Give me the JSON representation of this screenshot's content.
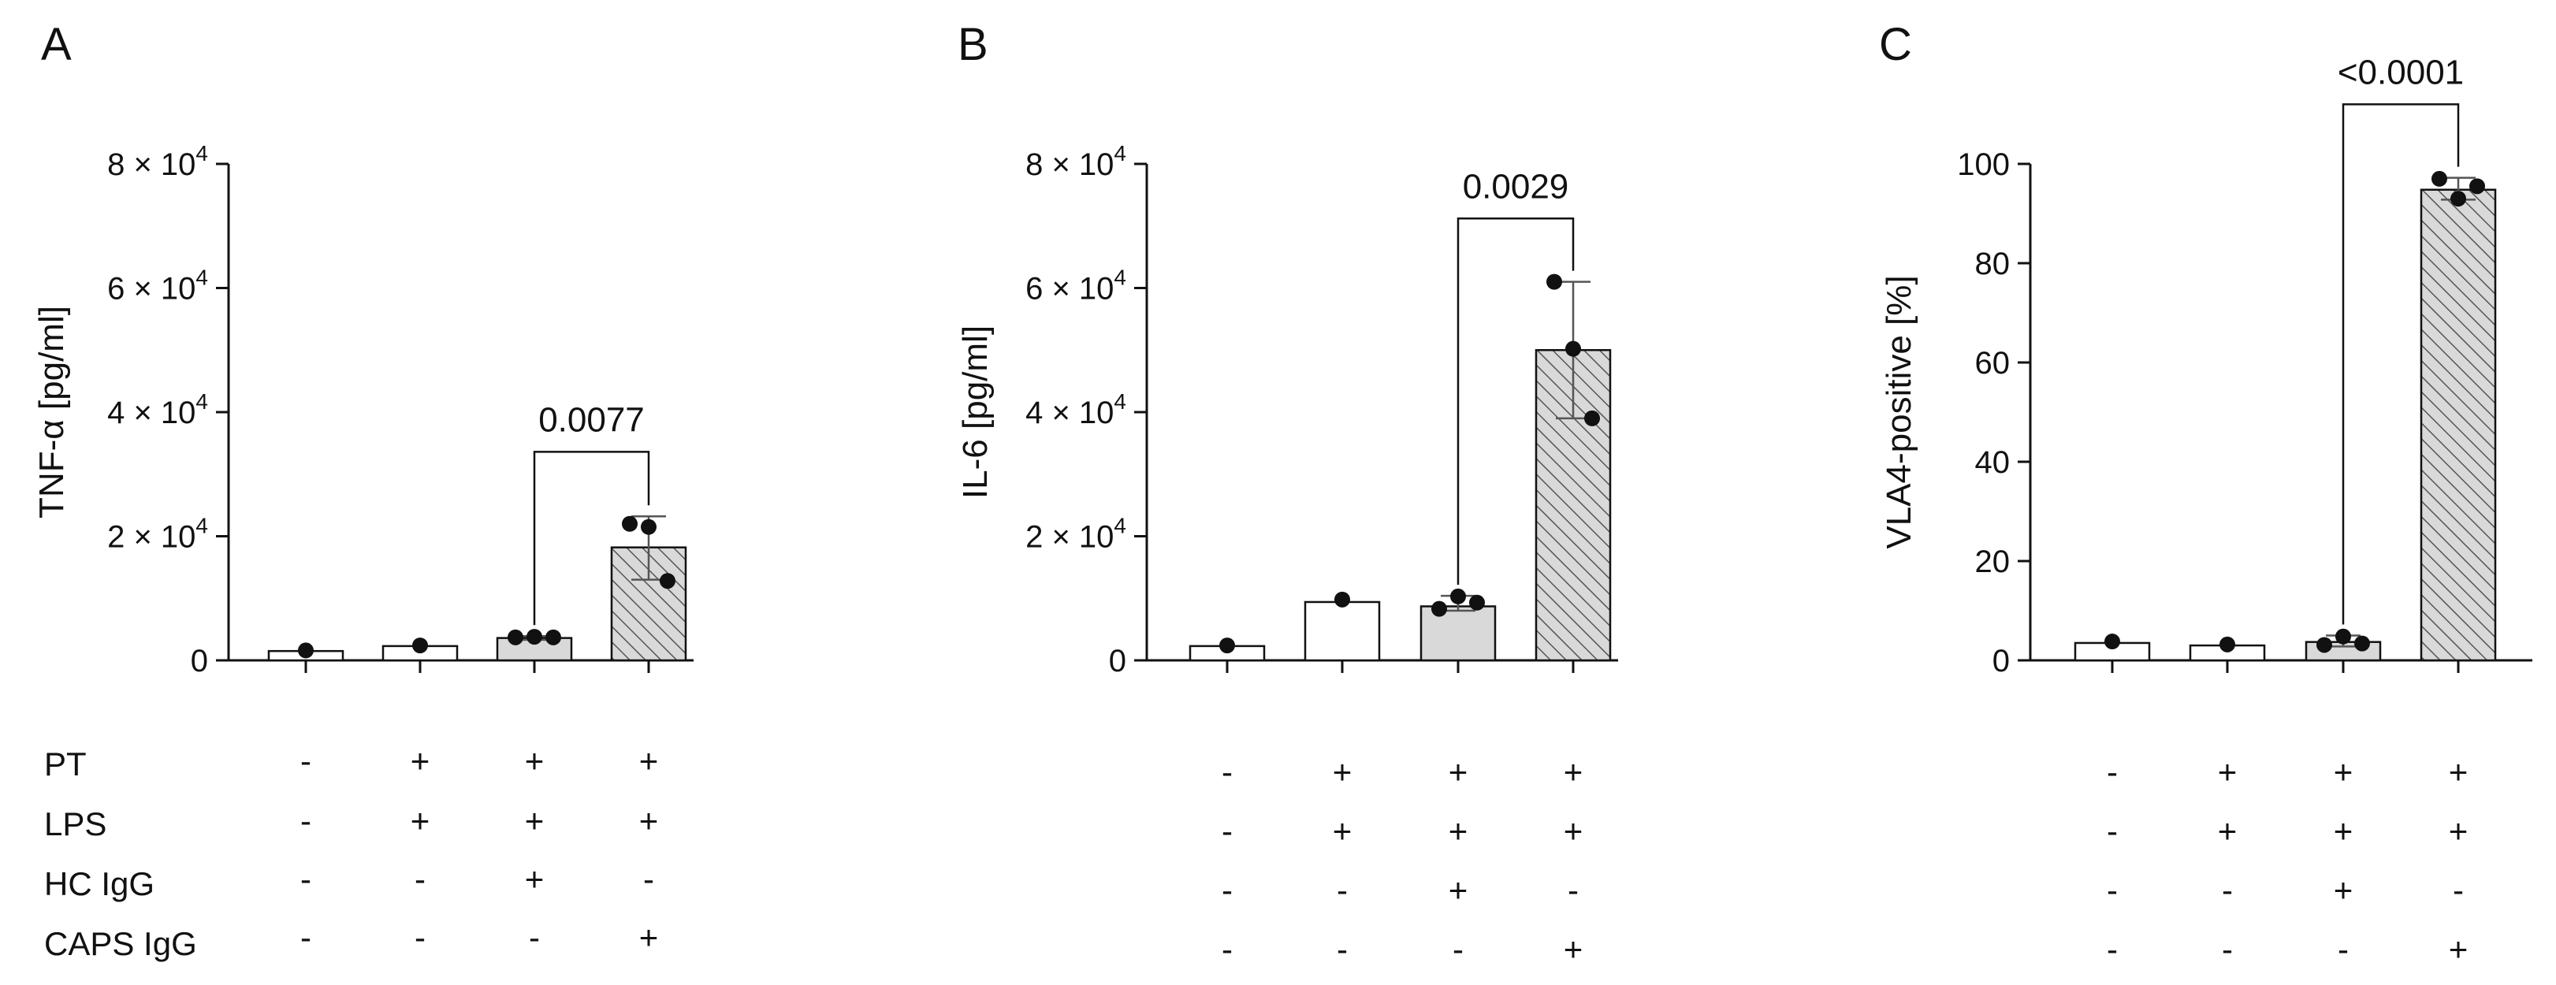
{
  "condition_labels": [
    "PT",
    "LPS",
    "HC IgG",
    "CAPS IgG"
  ],
  "chart_data": [
    {
      "type": "bar",
      "panel": "A",
      "ylabel": "TNF-α [pg/ml]",
      "ylim": [
        0,
        80000
      ],
      "yticks": [
        {
          "value": 0,
          "label": "0"
        },
        {
          "value": 20000,
          "label": "2 × 10",
          "exp": "4"
        },
        {
          "value": 40000,
          "label": "4 × 10",
          "exp": "4"
        },
        {
          "value": 60000,
          "label": "6 × 10",
          "exp": "4"
        },
        {
          "value": 80000,
          "label": "8 × 10",
          "exp": "4"
        }
      ],
      "bars": [
        {
          "value": 1500,
          "fill": "white",
          "points": [
            1600
          ],
          "err": null
        },
        {
          "value": 2300,
          "fill": "white",
          "points": [
            2400
          ],
          "err": null
        },
        {
          "value": 3600,
          "fill": "gray",
          "points": [
            3700,
            3800,
            3700
          ],
          "err": [
            3300,
            3900
          ]
        },
        {
          "value": 18200,
          "fill": "hatch",
          "points": [
            22000,
            21500,
            12800
          ],
          "err": [
            13000,
            23200
          ]
        }
      ],
      "comparison": {
        "bars": [
          2,
          3
        ],
        "label": "0.0077",
        "y": 33600
      },
      "conditions": [
        [
          "-",
          "+",
          "+",
          "+"
        ],
        [
          "-",
          "+",
          "+",
          "+"
        ],
        [
          "-",
          "-",
          "+",
          "-"
        ],
        [
          "-",
          "-",
          "-",
          "+"
        ]
      ]
    },
    {
      "type": "bar",
      "panel": "B",
      "ylabel": "IL-6 [pg/ml]",
      "ylim": [
        0,
        80000
      ],
      "yticks": [
        {
          "value": 0,
          "label": "0"
        },
        {
          "value": 20000,
          "label": "2 × 10",
          "exp": "4"
        },
        {
          "value": 40000,
          "label": "4 × 10",
          "exp": "4"
        },
        {
          "value": 60000,
          "label": "6 × 10",
          "exp": "4"
        },
        {
          "value": 80000,
          "label": "8 × 10",
          "exp": "4"
        }
      ],
      "bars": [
        {
          "value": 2300,
          "fill": "white",
          "points": [
            2400
          ],
          "err": null
        },
        {
          "value": 9400,
          "fill": "white",
          "points": [
            9800
          ],
          "err": null
        },
        {
          "value": 8700,
          "fill": "gray",
          "points": [
            8300,
            10300,
            9300
          ],
          "err": [
            8000,
            10400
          ]
        },
        {
          "value": 50000,
          "fill": "hatch",
          "points": [
            61000,
            50200,
            39000
          ],
          "err": [
            39000,
            61000
          ]
        }
      ],
      "comparison": {
        "bars": [
          2,
          3
        ],
        "label": "0.0029",
        "y": 71200
      },
      "conditions": [
        [
          "-",
          "+",
          "+",
          "+"
        ],
        [
          "-",
          "+",
          "+",
          "+"
        ],
        [
          "-",
          "-",
          "+",
          "-"
        ],
        [
          "-",
          "-",
          "-",
          "+"
        ]
      ]
    },
    {
      "type": "bar",
      "panel": "C",
      "ylabel": "VLA4-positive [%]",
      "ylim": [
        0,
        100
      ],
      "yticks": [
        {
          "value": 0,
          "label": "0"
        },
        {
          "value": 20,
          "label": "20"
        },
        {
          "value": 40,
          "label": "40"
        },
        {
          "value": 60,
          "label": "60"
        },
        {
          "value": 80,
          "label": "80"
        },
        {
          "value": 100,
          "label": "100"
        }
      ],
      "bars": [
        {
          "value": 3.5,
          "fill": "white",
          "points": [
            3.8
          ],
          "err": null
        },
        {
          "value": 3.0,
          "fill": "white",
          "points": [
            3.2
          ],
          "err": null
        },
        {
          "value": 3.7,
          "fill": "gray",
          "points": [
            3.1,
            4.8,
            3.4
          ],
          "err": [
            2.8,
            5.0
          ]
        },
        {
          "value": 94.8,
          "fill": "hatch",
          "points": [
            97.0,
            93.0,
            95.5
          ],
          "err": [
            92.8,
            97.2
          ]
        }
      ],
      "comparison": {
        "bars": [
          2,
          3
        ],
        "label": "<0.0001",
        "y": 112
      },
      "conditions": [
        [
          "-",
          "+",
          "+",
          "+"
        ],
        [
          "-",
          "+",
          "+",
          "+"
        ],
        [
          "-",
          "-",
          "+",
          "-"
        ],
        [
          "-",
          "-",
          "-",
          "+"
        ]
      ]
    }
  ]
}
